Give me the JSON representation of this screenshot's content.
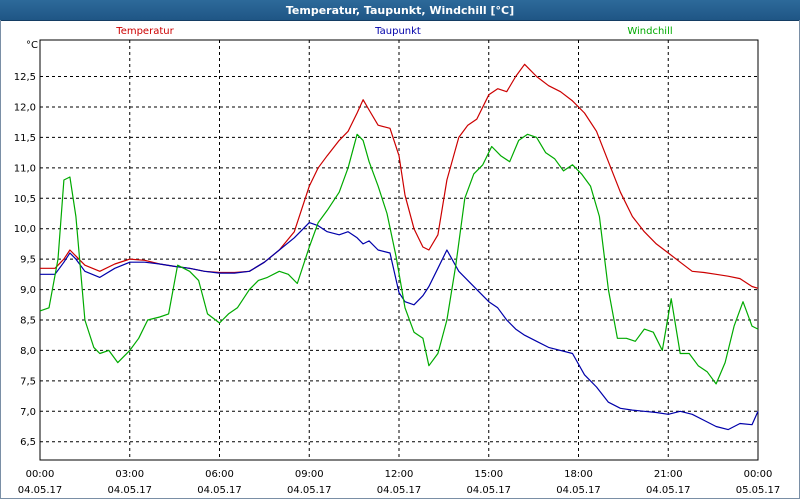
{
  "window": {
    "title": "Temperatur, Taupunkt, Windchill [°C]"
  },
  "colors": {
    "titlebar": "#1f5685",
    "temperature": "#cc0000",
    "dewpoint": "#0000aa",
    "windchill": "#00aa00",
    "grid": "#000000"
  },
  "chart_data": {
    "type": "line",
    "title": "Temperatur, Taupunkt, Windchill [°C]",
    "ylabel": "°C",
    "ylim": [
      6.5,
      12.5
    ],
    "yticks": [
      "6,5",
      "7,0",
      "7,5",
      "8,0",
      "8,5",
      "9,0",
      "9,5",
      "10,0",
      "10,5",
      "11,0",
      "11,5",
      "12,0",
      "12,5"
    ],
    "ytick_values": [
      6.5,
      7.0,
      7.5,
      8.0,
      8.5,
      9.0,
      9.5,
      10.0,
      10.5,
      11.0,
      11.5,
      12.0,
      12.5
    ],
    "xlim": [
      0,
      24
    ],
    "xticks": [
      {
        "time": "00:00",
        "date": "04.05.17"
      },
      {
        "time": "03:00",
        "date": "04.05.17"
      },
      {
        "time": "06:00",
        "date": "04.05.17"
      },
      {
        "time": "09:00",
        "date": "04.05.17"
      },
      {
        "time": "12:00",
        "date": "04.05.17"
      },
      {
        "time": "15:00",
        "date": "04.05.17"
      },
      {
        "time": "18:00",
        "date": "04.05.17"
      },
      {
        "time": "21:00",
        "date": "04.05.17"
      },
      {
        "time": "00:00",
        "date": "05.05.17"
      }
    ],
    "grid": true,
    "legend_placement": "top",
    "series": [
      {
        "name": "Temperatur",
        "x": [
          0,
          0.5,
          0.8,
          1.0,
          1.2,
          1.5,
          2.0,
          2.5,
          3.0,
          3.5,
          4.0,
          4.5,
          5.0,
          5.5,
          6.0,
          6.5,
          7.0,
          7.5,
          8.0,
          8.5,
          9.0,
          9.3,
          9.6,
          10.0,
          10.3,
          10.6,
          10.8,
          11.0,
          11.3,
          11.7,
          12.0,
          12.2,
          12.5,
          12.8,
          13.0,
          13.3,
          13.6,
          14.0,
          14.3,
          14.6,
          15.0,
          15.3,
          15.6,
          15.9,
          16.2,
          16.6,
          17.0,
          17.4,
          17.8,
          18.2,
          18.6,
          19.0,
          19.4,
          19.8,
          20.2,
          20.6,
          21.0,
          21.4,
          21.8,
          22.2,
          22.6,
          23.0,
          23.4,
          23.8,
          24.0
        ],
        "values": [
          9.35,
          9.35,
          9.5,
          9.65,
          9.55,
          9.4,
          9.3,
          9.42,
          9.5,
          9.48,
          9.42,
          9.38,
          9.35,
          9.3,
          9.28,
          9.28,
          9.3,
          9.45,
          9.65,
          9.95,
          10.7,
          11.0,
          11.2,
          11.45,
          11.6,
          11.9,
          12.12,
          11.95,
          11.7,
          11.65,
          11.2,
          10.55,
          10.0,
          9.7,
          9.65,
          9.9,
          10.8,
          11.5,
          11.7,
          11.8,
          12.2,
          12.3,
          12.25,
          12.5,
          12.7,
          12.5,
          12.35,
          12.25,
          12.1,
          11.9,
          11.6,
          11.1,
          10.6,
          10.2,
          9.95,
          9.75,
          9.6,
          9.45,
          9.3,
          9.28,
          9.25,
          9.22,
          9.18,
          9.05,
          9.02
        ]
      },
      {
        "name": "Taupunkt",
        "x": [
          0,
          0.5,
          0.8,
          1.0,
          1.2,
          1.5,
          2.0,
          2.5,
          3.0,
          3.5,
          4.0,
          4.5,
          5.0,
          5.5,
          6.0,
          6.5,
          7.0,
          7.5,
          8.0,
          8.5,
          9.0,
          9.3,
          9.6,
          10.0,
          10.3,
          10.6,
          10.8,
          11.0,
          11.3,
          11.7,
          12.0,
          12.2,
          12.5,
          12.8,
          13.0,
          13.3,
          13.6,
          14.0,
          14.3,
          14.6,
          15.0,
          15.3,
          15.6,
          15.9,
          16.2,
          16.6,
          17.0,
          17.4,
          17.8,
          18.2,
          18.6,
          19.0,
          19.4,
          19.8,
          20.2,
          20.6,
          21.0,
          21.4,
          21.8,
          22.2,
          22.6,
          23.0,
          23.4,
          23.8,
          24.0
        ],
        "values": [
          9.25,
          9.25,
          9.45,
          9.6,
          9.5,
          9.3,
          9.2,
          9.35,
          9.45,
          9.45,
          9.42,
          9.38,
          9.35,
          9.3,
          9.27,
          9.27,
          9.3,
          9.45,
          9.65,
          9.85,
          10.1,
          10.05,
          9.95,
          9.9,
          9.95,
          9.85,
          9.75,
          9.8,
          9.65,
          9.6,
          8.95,
          8.8,
          8.75,
          8.9,
          9.05,
          9.35,
          9.65,
          9.3,
          9.15,
          9.0,
          8.8,
          8.7,
          8.5,
          8.35,
          8.25,
          8.15,
          8.05,
          8.0,
          7.95,
          7.6,
          7.4,
          7.15,
          7.05,
          7.02,
          7.0,
          6.98,
          6.95,
          7.0,
          6.95,
          6.85,
          6.75,
          6.7,
          6.8,
          6.78,
          7.0
        ]
      },
      {
        "name": "Windchill",
        "x": [
          0,
          0.3,
          0.6,
          0.8,
          1.0,
          1.2,
          1.5,
          1.8,
          2.0,
          2.3,
          2.6,
          3.0,
          3.3,
          3.6,
          4.0,
          4.3,
          4.6,
          5.0,
          5.3,
          5.6,
          6.0,
          6.3,
          6.6,
          7.0,
          7.3,
          7.6,
          8.0,
          8.3,
          8.6,
          9.0,
          9.3,
          9.6,
          10.0,
          10.3,
          10.6,
          10.8,
          11.0,
          11.3,
          11.6,
          11.9,
          12.2,
          12.5,
          12.8,
          13.0,
          13.3,
          13.6,
          13.9,
          14.2,
          14.5,
          14.8,
          15.1,
          15.4,
          15.7,
          16.0,
          16.3,
          16.6,
          16.9,
          17.2,
          17.5,
          17.8,
          18.1,
          18.4,
          18.7,
          19.0,
          19.3,
          19.6,
          19.9,
          20.2,
          20.5,
          20.8,
          21.1,
          21.4,
          21.7,
          22.0,
          22.3,
          22.6,
          22.9,
          23.2,
          23.5,
          23.8,
          24.0
        ],
        "values": [
          8.65,
          8.7,
          9.5,
          10.8,
          10.85,
          10.2,
          8.5,
          8.05,
          7.95,
          8.0,
          7.8,
          8.0,
          8.2,
          8.5,
          8.55,
          8.6,
          9.4,
          9.3,
          9.15,
          8.6,
          8.45,
          8.6,
          8.7,
          9.0,
          9.15,
          9.2,
          9.3,
          9.25,
          9.1,
          9.7,
          10.1,
          10.3,
          10.6,
          11.0,
          11.55,
          11.45,
          11.1,
          10.7,
          10.25,
          9.55,
          8.7,
          8.3,
          8.2,
          7.75,
          7.95,
          8.5,
          9.4,
          10.5,
          10.9,
          11.05,
          11.35,
          11.2,
          11.1,
          11.45,
          11.55,
          11.5,
          11.25,
          11.15,
          10.95,
          11.05,
          10.9,
          10.7,
          10.2,
          9.0,
          8.2,
          8.2,
          8.15,
          8.35,
          8.3,
          8.0,
          8.85,
          7.95,
          7.95,
          7.75,
          7.65,
          7.45,
          7.8,
          8.4,
          8.8,
          8.4,
          8.35
        ]
      }
    ]
  }
}
